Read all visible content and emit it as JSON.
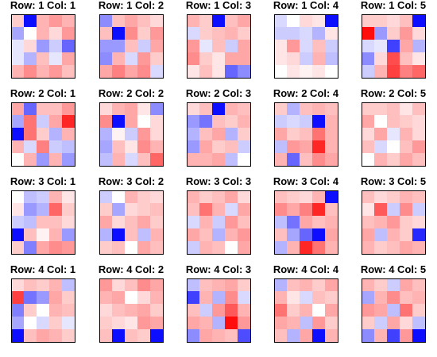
{
  "chart_data": {
    "type": "heatmap",
    "layout": {
      "rows": 4,
      "cols": 5
    },
    "colormap": {
      "low": "#0000ff",
      "mid": "#ffffff",
      "high": "#ff0000"
    },
    "value_range": [
      -1,
      1
    ],
    "grid": false,
    "legend": "none",
    "panels": [
      {
        "title": "Row: 1 Col: 1",
        "values": [
          [
            0.2,
            -0.95,
            0.3,
            0.4,
            0.3
          ],
          [
            -0.35,
            0.0,
            0.3,
            0.15,
            0.4
          ],
          [
            -0.1,
            0.15,
            -0.4,
            -0.2,
            -0.6
          ],
          [
            -0.1,
            -0.3,
            0.25,
            -0.1,
            0.35
          ],
          [
            0.3,
            0.45,
            0.3,
            0.4,
            0.25
          ]
        ]
      },
      {
        "title": "Row: 1 Col: 2",
        "values": [
          [
            -0.45,
            0.25,
            0.35,
            0.25,
            0.15
          ],
          [
            0.25,
            -0.95,
            0.45,
            0.2,
            0.4
          ],
          [
            -0.4,
            -0.4,
            0.25,
            -0.2,
            0.35
          ],
          [
            -0.45,
            0.3,
            -0.15,
            0.4,
            0.2
          ],
          [
            0.35,
            0.5,
            0.35,
            0.45,
            -0.15
          ]
        ]
      },
      {
        "title": "Row: 1 Col: 3",
        "values": [
          [
            0.3,
            0.2,
            -0.95,
            0.25,
            0.35
          ],
          [
            -0.15,
            0.2,
            0.25,
            0.3,
            0.2
          ],
          [
            0.4,
            -0.1,
            0.25,
            -0.2,
            0.35
          ],
          [
            0.45,
            0.2,
            0.1,
            0.35,
            0.35
          ],
          [
            0.1,
            0.25,
            0.1,
            -0.6,
            -0.45
          ]
        ]
      },
      {
        "title": "Row: 1 Col: 4",
        "values": [
          [
            -0.15,
            0.0,
            0.15,
            0.1,
            -0.95
          ],
          [
            -0.2,
            -0.2,
            -0.15,
            -0.3,
            0.1
          ],
          [
            0.1,
            0.4,
            -0.15,
            0.25,
            -0.2
          ],
          [
            0.1,
            0.15,
            -0.2,
            0.3,
            -0.25
          ],
          [
            0.0,
            0.1,
            0.05,
            0.1,
            0.0
          ]
        ]
      },
      {
        "title": "Row: 1 Col: 5",
        "values": [
          [
            0.2,
            0.2,
            0.15,
            0.25,
            -0.95
          ],
          [
            0.95,
            -0.4,
            0.2,
            0.4,
            0.15
          ],
          [
            -0.15,
            -0.1,
            -0.75,
            0.35,
            -0.3
          ],
          [
            -0.45,
            0.15,
            0.7,
            0.25,
            0.1
          ],
          [
            -0.2,
            0.3,
            0.75,
            0.5,
            0.6
          ]
        ]
      },
      {
        "title": "Row: 2 Col: 1",
        "values": [
          [
            0.35,
            -0.6,
            0.25,
            0.25,
            0.4
          ],
          [
            -0.35,
            0.55,
            -0.2,
            0.35,
            0.85
          ],
          [
            -0.95,
            0.55,
            0.2,
            -0.3,
            0.3
          ],
          [
            0.3,
            -0.15,
            0.5,
            -0.2,
            -0.25
          ],
          [
            0.0,
            0.3,
            -0.4,
            0.3,
            -0.4
          ]
        ]
      },
      {
        "title": "Row: 2 Col: 2",
        "values": [
          [
            0.15,
            0.3,
            0.35,
            0.1,
            -0.45
          ],
          [
            0.45,
            -0.95,
            0.35,
            0.0,
            0.15
          ],
          [
            -0.3,
            0.05,
            -0.2,
            0.4,
            0.15
          ],
          [
            -0.35,
            0.25,
            0.1,
            0.45,
            0.3
          ],
          [
            -0.25,
            0.3,
            -0.15,
            0.25,
            0.6
          ]
        ]
      },
      {
        "title": "Row: 2 Col: 3",
        "values": [
          [
            0.15,
            0.25,
            -0.95,
            0.3,
            0.25
          ],
          [
            -0.4,
            -0.55,
            0.25,
            0.2,
            0.3
          ],
          [
            -0.3,
            0.25,
            0.35,
            -0.3,
            0.2
          ],
          [
            -0.4,
            0.35,
            0.2,
            0.25,
            -0.2
          ],
          [
            0.3,
            0.3,
            0.35,
            -0.25,
            0.0
          ]
        ]
      },
      {
        "title": "Row: 2 Col: 4",
        "values": [
          [
            0.2,
            -0.3,
            0.25,
            0.3,
            0.25
          ],
          [
            -0.2,
            -0.15,
            -0.2,
            -0.95,
            0.3
          ],
          [
            0.35,
            0.2,
            0.25,
            0.55,
            0.3
          ],
          [
            -0.25,
            0.4,
            0.35,
            0.85,
            0.3
          ],
          [
            0.3,
            -0.6,
            0.25,
            0.45,
            0.35
          ]
        ]
      },
      {
        "title": "Row: 2 Col: 5",
        "values": [
          [
            0.2,
            0.2,
            0.25,
            0.1,
            0.25
          ],
          [
            0.35,
            0.0,
            0.25,
            0.2,
            0.15
          ],
          [
            0.15,
            0.35,
            -0.1,
            0.3,
            0.15
          ],
          [
            0.25,
            -0.15,
            0.0,
            0.25,
            0.4
          ],
          [
            0.0,
            0.3,
            0.2,
            0.35,
            0.25
          ]
        ]
      },
      {
        "title": "Row: 3 Col: 1",
        "values": [
          [
            0.0,
            -0.25,
            -0.2,
            0.3,
            0.1
          ],
          [
            0.1,
            -0.4,
            -0.3,
            0.6,
            0.2
          ],
          [
            -0.2,
            -0.25,
            0.25,
            0.25,
            0.15
          ],
          [
            -0.95,
            0.25,
            0.05,
            0.3,
            -0.4
          ],
          [
            0.2,
            -0.5,
            0.35,
            0.45,
            0.4
          ]
        ]
      },
      {
        "title": "Row: 3 Col: 2",
        "values": [
          [
            -0.2,
            0.0,
            0.3,
            0.2,
            0.15
          ],
          [
            0.2,
            -0.35,
            0.15,
            0.2,
            0.25
          ],
          [
            0.35,
            0.15,
            0.25,
            0.35,
            0.2
          ],
          [
            -0.3,
            -0.95,
            0.25,
            -0.25,
            0.3
          ],
          [
            0.2,
            0.25,
            0.0,
            0.35,
            0.25
          ]
        ]
      },
      {
        "title": "Row: 3 Col: 3",
        "values": [
          [
            0.3,
            0.2,
            0.25,
            0.35,
            0.15
          ],
          [
            0.25,
            0.55,
            0.3,
            -0.15,
            0.35
          ],
          [
            -0.15,
            0.3,
            -0.2,
            0.4,
            0.25
          ],
          [
            0.35,
            0.25,
            -0.3,
            0.3,
            0.4
          ],
          [
            -0.2,
            0.3,
            0.25,
            0.0,
            0.35
          ]
        ]
      },
      {
        "title": "Row: 3 Col: 4",
        "values": [
          [
            0.25,
            0.2,
            0.15,
            0.3,
            -0.95
          ],
          [
            0.45,
            0.35,
            0.5,
            0.85,
            0.25
          ],
          [
            -0.25,
            -0.55,
            0.35,
            0.25,
            0.3
          ],
          [
            0.25,
            -0.35,
            -0.6,
            -0.95,
            0.35
          ],
          [
            -0.3,
            0.3,
            0.85,
            0.55,
            0.3
          ]
        ]
      },
      {
        "title": "Row: 3 Col: 5",
        "values": [
          [
            0.25,
            0.15,
            0.2,
            0.3,
            0.25
          ],
          [
            0.1,
            0.65,
            -0.2,
            0.45,
            -0.2
          ],
          [
            0.25,
            0.3,
            0.4,
            0.2,
            0.15
          ],
          [
            0.35,
            -0.25,
            0.3,
            0.2,
            -0.85
          ],
          [
            0.3,
            0.2,
            0.25,
            0.35,
            0.3
          ]
        ]
      },
      {
        "title": "Row: 4 Col: 1",
        "values": [
          [
            0.15,
            0.25,
            0.2,
            0.3,
            -0.25
          ],
          [
            0.75,
            -0.55,
            -0.4,
            0.35,
            0.2
          ],
          [
            -0.5,
            0.2,
            0.0,
            0.3,
            0.25
          ],
          [
            -0.35,
            0.0,
            -0.15,
            0.2,
            -0.1
          ],
          [
            -0.95,
            0.25,
            0.35,
            0.3,
            0.2
          ]
        ]
      },
      {
        "title": "Row: 4 Col: 2",
        "values": [
          [
            0.4,
            0.15,
            0.25,
            0.45,
            0.35
          ],
          [
            0.3,
            0.35,
            0.0,
            0.15,
            0.3
          ],
          [
            0.15,
            0.25,
            0.3,
            0.35,
            0.2
          ],
          [
            0.2,
            0.15,
            0.1,
            0.4,
            0.35
          ],
          [
            0.25,
            -0.95,
            0.25,
            0.2,
            -0.95
          ]
        ]
      },
      {
        "title": "Row: 4 Col: 3",
        "values": [
          [
            -0.25,
            0.25,
            0.3,
            0.35,
            0.2
          ],
          [
            -0.75,
            0.3,
            -0.3,
            0.45,
            -0.15
          ],
          [
            0.25,
            -0.2,
            0.4,
            0.65,
            0.3
          ],
          [
            0.35,
            0.3,
            -0.3,
            0.95,
            0.4
          ],
          [
            -0.45,
            0.35,
            0.3,
            0.25,
            -0.7
          ]
        ]
      },
      {
        "title": "Row: 4 Col: 4",
        "values": [
          [
            -0.3,
            0.25,
            0.3,
            0.2,
            0.35
          ],
          [
            0.3,
            0.1,
            -0.15,
            0.25,
            0.2
          ],
          [
            0.55,
            0.2,
            0.3,
            0.0,
            0.35
          ],
          [
            0.35,
            0.3,
            -0.25,
            0.4,
            0.2
          ],
          [
            0.25,
            -0.3,
            0.35,
            -0.95,
            0.3
          ]
        ]
      },
      {
        "title": "Row: 4 Col: 5",
        "values": [
          [
            0.3,
            0.2,
            -0.2,
            0.35,
            0.25
          ],
          [
            -0.35,
            0.3,
            0.45,
            0.25,
            0.3
          ],
          [
            0.4,
            0.35,
            -0.25,
            0.55,
            0.2
          ],
          [
            0.2,
            -0.2,
            0.35,
            0.15,
            -0.25
          ],
          [
            -0.45,
            0.3,
            -0.75,
            0.4,
            -0.95
          ]
        ]
      }
    ]
  }
}
